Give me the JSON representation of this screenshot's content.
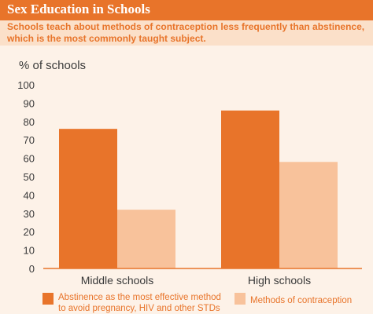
{
  "header": {
    "title": "Sex Education in Schools",
    "subtitle": "Schools teach about methods of contraception less frequently than abstinence, which is the most commonly taught subject."
  },
  "colors": {
    "header_bg": "#e8742a",
    "subheader_bg": "#fbe0c9",
    "plot_bg": "#fdf2e8",
    "series1": "#e8742a",
    "series2": "#f8c29b"
  },
  "chart_data": {
    "type": "bar",
    "title": "",
    "ylabel": "% of schools",
    "xlabel": "",
    "categories": [
      "Middle schools",
      "High schools"
    ],
    "ylim": [
      0,
      100
    ],
    "yticks": [
      0,
      10,
      20,
      30,
      40,
      50,
      60,
      70,
      80,
      90,
      100
    ],
    "grid": false,
    "legend_position": "bottom",
    "series": [
      {
        "name": "Abstinence as the most effective method to avoid pregnancy, HIV and other STDs",
        "values": [
          76,
          86
        ],
        "color": "#e8742a"
      },
      {
        "name": "Methods of contraception",
        "values": [
          32,
          58
        ],
        "color": "#f8c29b"
      }
    ]
  }
}
